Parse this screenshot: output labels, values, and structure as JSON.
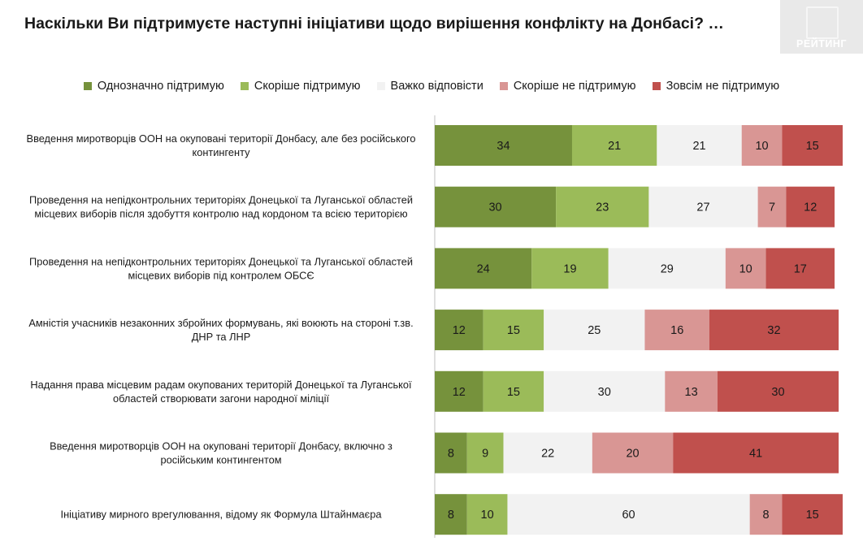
{
  "title": "Наскільки Ви підтримуєте наступні ініціативи щодо вирішення конфлікту на Донбасі? …",
  "logo_text": "РЕЙТИНГ",
  "colors": {
    "strong_support": "#76923c",
    "rather_support": "#9bbb59",
    "hard_to_say": "#f2f2f2",
    "rather_not": "#d99694",
    "not_at_all": "#c0504d"
  },
  "chart_data": {
    "type": "bar",
    "orientation": "horizontal",
    "stacked": true,
    "title": "Наскільки Ви підтримуєте наступні ініціативи щодо вирішення конфлікту на Донбасі? …",
    "xlim": [
      0,
      100
    ],
    "grid": false,
    "legend_position": "top",
    "categories": [
      [
        "Введення миротворців ООН на окуповані території Донбасу, але без російського",
        "контингенту"
      ],
      [
        "Проведення на непідконтрольних територіях Донецької та Луганської областей",
        "місцевих виборів після здобуття контролю над кордоном та всією територією"
      ],
      [
        "Проведення на непідконтрольних територіях Донецької та Луганської областей",
        "місцевих виборів під контролем ОБСЄ"
      ],
      [
        "Амністія учасників незаконних збройних формувань, які воюють на стороні т.зв.",
        "ДНР та ЛНР"
      ],
      [
        "Надання права місцевим радам окупованих територій Донецької та Луганської",
        "областей створювати загони народної міліції"
      ],
      [
        "Введення миротворців ООН на окуповані території Донбасу, включно з",
        "російським контингентом"
      ],
      [
        "Ініціативу мирного врегулювання, відому як Формула Штайнмаєра"
      ]
    ],
    "series": [
      {
        "name": "Однозначно підтримую",
        "color": "#76923c",
        "text_color": "#1a1a1a",
        "values": [
          34,
          30,
          24,
          12,
          12,
          8,
          8
        ]
      },
      {
        "name": "Скоріше підтримую",
        "color": "#9bbb59",
        "text_color": "#1a1a1a",
        "values": [
          21,
          23,
          19,
          15,
          15,
          9,
          10
        ]
      },
      {
        "name": "Важко відповісти",
        "color": "#f2f2f2",
        "text_color": "#1a1a1a",
        "values": [
          21,
          27,
          29,
          25,
          30,
          22,
          60
        ]
      },
      {
        "name": "Скоріше не підтримую",
        "color": "#d99694",
        "text_color": "#1a1a1a",
        "values": [
          10,
          7,
          10,
          16,
          13,
          20,
          8
        ]
      },
      {
        "name": "Зовсім не підтримую",
        "color": "#c0504d",
        "text_color": "#1a1a1a",
        "values": [
          15,
          12,
          17,
          32,
          30,
          41,
          15
        ]
      }
    ]
  }
}
